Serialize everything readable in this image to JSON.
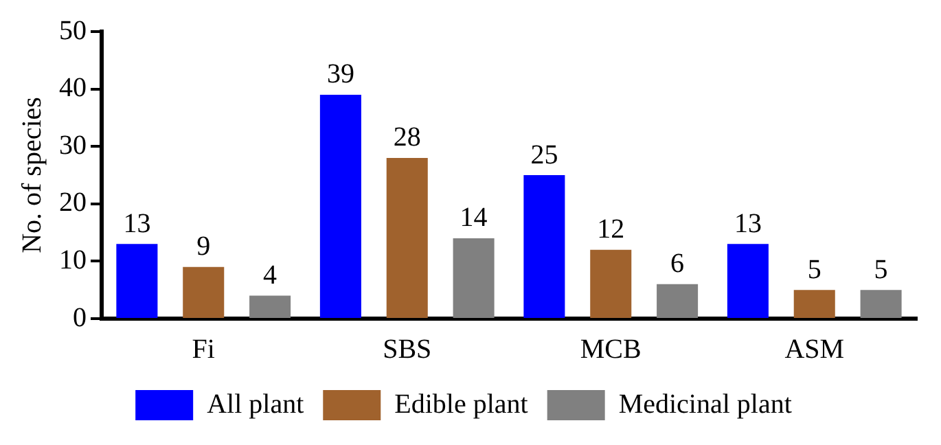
{
  "chart_data": {
    "type": "bar",
    "ylabel": "No. of species",
    "categories": [
      "Fi",
      "SBS",
      "MCB",
      "ASM"
    ],
    "series": [
      {
        "name": "All plant",
        "color": "#0000ff",
        "values": [
          13,
          39,
          25,
          13
        ]
      },
      {
        "name": "Edible plant",
        "color": "#a0622d",
        "values": [
          9,
          28,
          12,
          5
        ]
      },
      {
        "name": "Medicinal plant",
        "color": "#808080",
        "values": [
          4,
          14,
          6,
          5
        ]
      }
    ],
    "ylim": [
      0,
      50
    ],
    "yticks": [
      0,
      10,
      20,
      30,
      40,
      50
    ],
    "grid": false,
    "legend": "bottom",
    "data_labels": true
  }
}
